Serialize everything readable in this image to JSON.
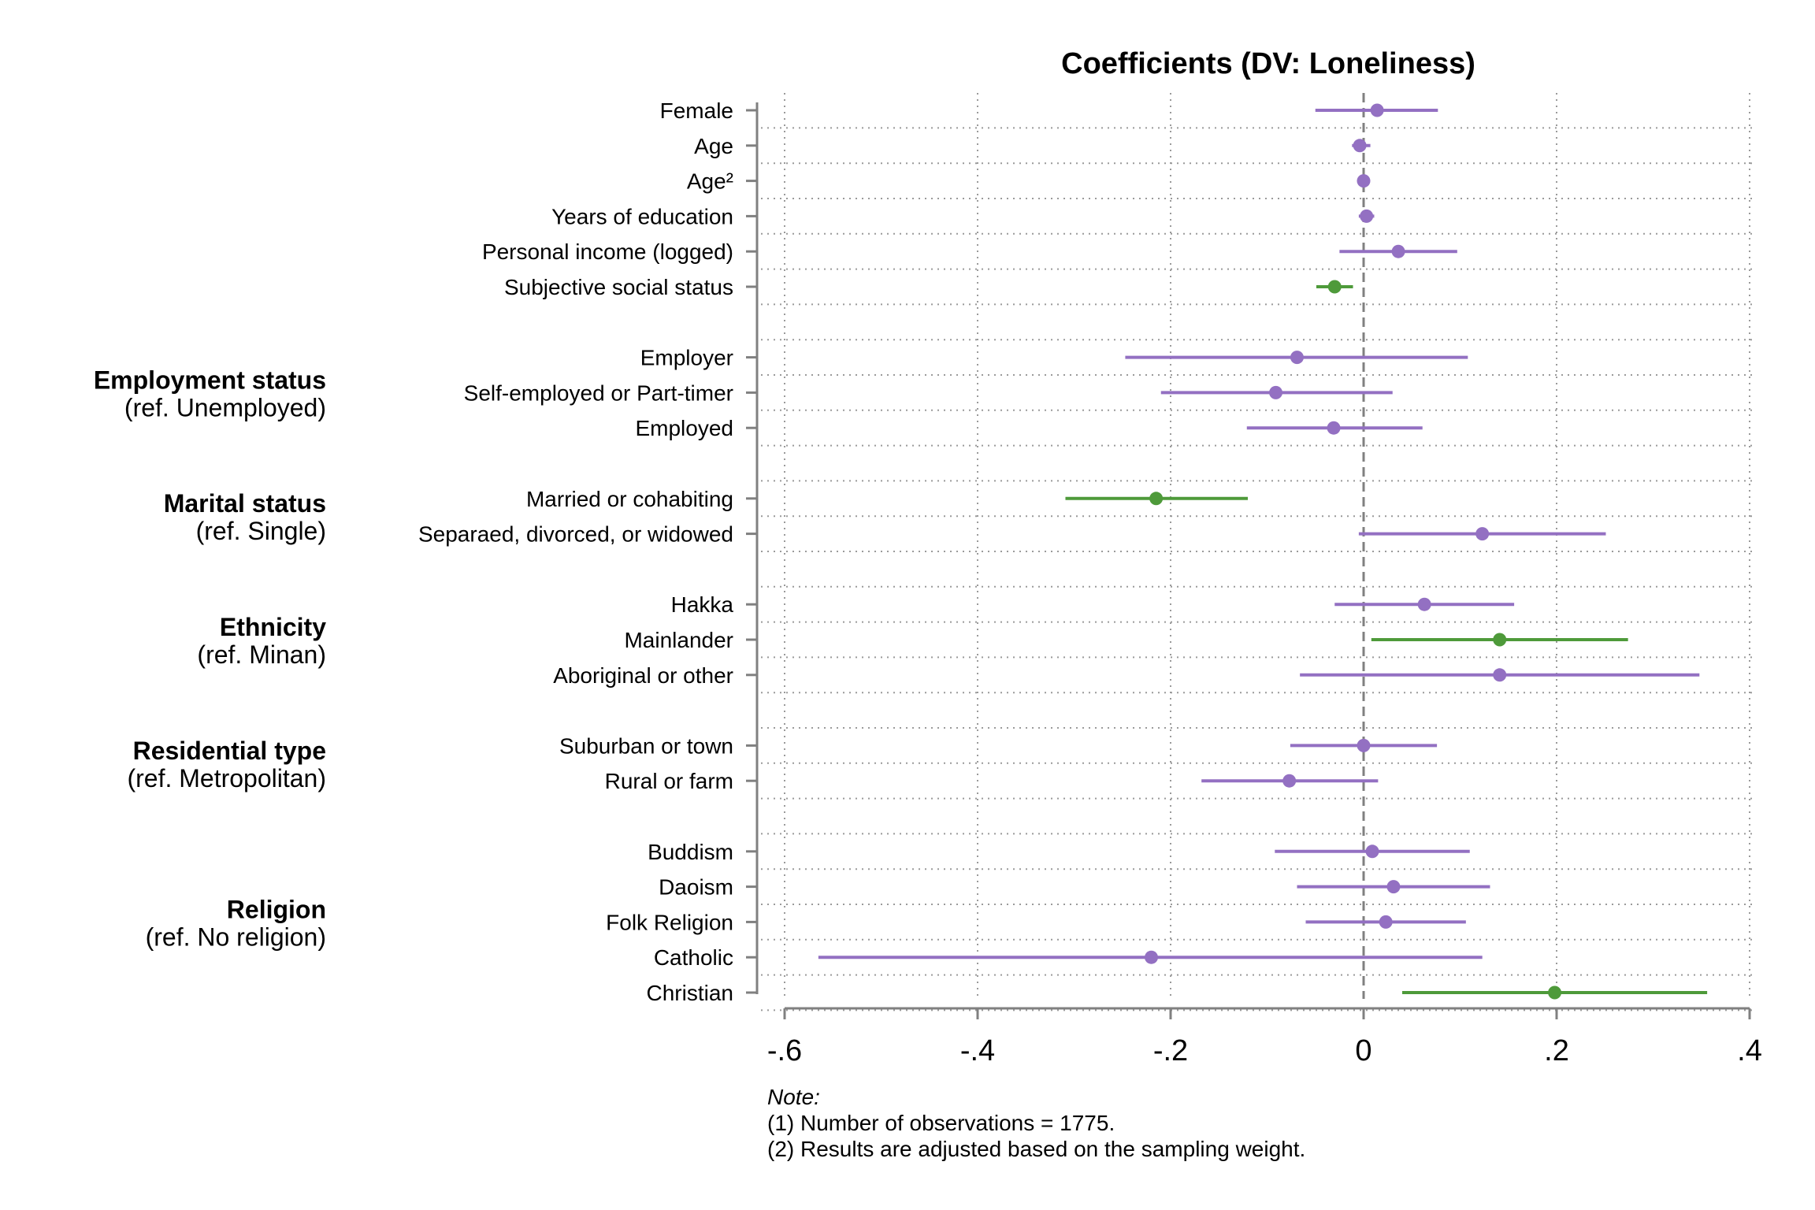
{
  "chart_data": {
    "type": "coefficient-plot",
    "title": "Coefficients (DV: Loneliness)",
    "xlim": [
      -0.6,
      0.4
    ],
    "x_ticks": [
      {
        "value": -0.6,
        "label": "-.6"
      },
      {
        "value": -0.4,
        "label": "-.4"
      },
      {
        "value": -0.2,
        "label": "-.2"
      },
      {
        "value": 0,
        "label": "0"
      },
      {
        "value": 0.2,
        "label": ".2"
      },
      {
        "value": 0.4,
        "label": ".4"
      }
    ],
    "reference_line": 0,
    "grid": true,
    "colors": {
      "non_significant": "#9370c2",
      "significant": "#4e9a3a",
      "reference": "#808080",
      "grid": "#9a9a9a",
      "axis": "#808080"
    },
    "rows": [
      {
        "label": "Female",
        "coef": 0.014,
        "lo": -0.05,
        "hi": 0.077,
        "significant": false
      },
      {
        "label": "Age",
        "coef": -0.004,
        "lo": -0.012,
        "hi": 0.007,
        "significant": false
      },
      {
        "label": "Age²",
        "coef": 0.0,
        "lo": -0.001,
        "hi": 0.001,
        "significant": false
      },
      {
        "label": "Years of education",
        "coef": 0.003,
        "lo": -0.005,
        "hi": 0.011,
        "significant": false
      },
      {
        "label": "Personal income (logged)",
        "coef": 0.036,
        "lo": -0.025,
        "hi": 0.097,
        "significant": false
      },
      {
        "label": "Subjective social status",
        "coef": -0.03,
        "lo": -0.049,
        "hi": -0.011,
        "significant": true
      },
      {
        "label": "",
        "spacer": true
      },
      {
        "label": "Employer",
        "coef": -0.069,
        "lo": -0.247,
        "hi": 0.108,
        "significant": false
      },
      {
        "label": "Self-employed or Part-timer",
        "coef": -0.091,
        "lo": -0.21,
        "hi": 0.03,
        "significant": false
      },
      {
        "label": "Employed",
        "coef": -0.031,
        "lo": -0.121,
        "hi": 0.061,
        "significant": false
      },
      {
        "label": "",
        "spacer": true
      },
      {
        "label": "Married or cohabiting",
        "coef": -0.215,
        "lo": -0.309,
        "hi": -0.12,
        "significant": true
      },
      {
        "label": "Separaed, divorced, or widowed",
        "coef": 0.123,
        "lo": -0.005,
        "hi": 0.251,
        "significant": false
      },
      {
        "label": "",
        "spacer": true
      },
      {
        "label": "Hakka",
        "coef": 0.063,
        "lo": -0.03,
        "hi": 0.156,
        "significant": false
      },
      {
        "label": "Mainlander",
        "coef": 0.141,
        "lo": 0.008,
        "hi": 0.274,
        "significant": true
      },
      {
        "label": "Aboriginal or other",
        "coef": 0.141,
        "lo": -0.066,
        "hi": 0.348,
        "significant": false
      },
      {
        "label": "",
        "spacer": true
      },
      {
        "label": "Suburban or town",
        "coef": 0.0,
        "lo": -0.076,
        "hi": 0.076,
        "significant": false
      },
      {
        "label": "Rural or farm",
        "coef": -0.077,
        "lo": -0.168,
        "hi": 0.015,
        "significant": false
      },
      {
        "label": "",
        "spacer": true
      },
      {
        "label": "Buddism",
        "coef": 0.009,
        "lo": -0.092,
        "hi": 0.11,
        "significant": false
      },
      {
        "label": "Daoism",
        "coef": 0.031,
        "lo": -0.069,
        "hi": 0.131,
        "significant": false
      },
      {
        "label": "Folk Religion",
        "coef": 0.023,
        "lo": -0.06,
        "hi": 0.106,
        "significant": false
      },
      {
        "label": "Catholic",
        "coef": -0.22,
        "lo": -0.565,
        "hi": 0.123,
        "significant": false
      },
      {
        "label": "Christian",
        "coef": 0.198,
        "lo": 0.04,
        "hi": 0.356,
        "significant": true
      }
    ],
    "groups": [
      {
        "title": "Employment status",
        "ref": "(ref. Unemployed)",
        "rows": [
          7,
          9
        ]
      },
      {
        "title": "Marital status",
        "ref": "(ref. Single)",
        "rows": [
          11,
          12
        ]
      },
      {
        "title": "Ethnicity",
        "ref": "(ref. Minan)",
        "rows": [
          14,
          16
        ]
      },
      {
        "title": "Residential type",
        "ref": "(ref. Metropolitan)",
        "rows": [
          18,
          19
        ]
      },
      {
        "title": "Religion",
        "ref": "(ref. No religion)",
        "rows": [
          21,
          25
        ]
      }
    ]
  },
  "note": {
    "heading": "Note:",
    "lines": [
      "(1) Number of observations = 1775.",
      "(2) Results are adjusted based on the sampling weight."
    ]
  }
}
